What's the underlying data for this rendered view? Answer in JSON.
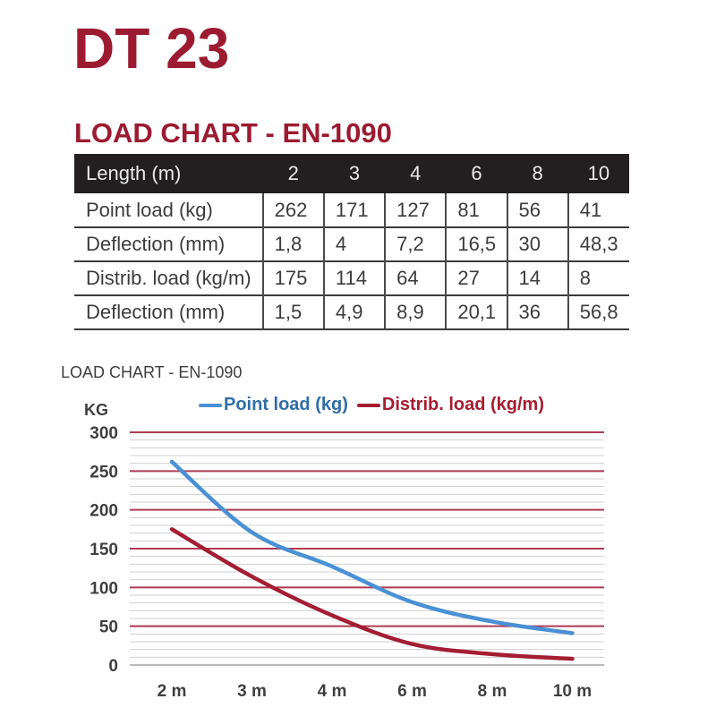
{
  "header": {
    "product_title": "DT 23",
    "section_title": "LOAD CHART - EN-1090",
    "accent_color": "#9C1B31"
  },
  "table": {
    "header_row": [
      "Length (m)",
      "2",
      "3",
      "4",
      "6",
      "8",
      "10"
    ],
    "rows": [
      [
        "Point load (kg)",
        "262",
        "171",
        "127",
        "81",
        "56",
        "41"
      ],
      [
        "Deflection (mm)",
        "1,8",
        "4",
        "7,2",
        "16,5",
        "30",
        "48,3"
      ],
      [
        "Distrib. load (kg/m)",
        "175",
        "114",
        "64",
        "27",
        "14",
        "8"
      ],
      [
        "Deflection (mm)",
        "1,5",
        "4,9",
        "8,9",
        "20,1",
        "36",
        "56,8"
      ]
    ],
    "header_bg": "#231F20",
    "header_text_color": "#E9E9E9",
    "body_text_color": "#3C3C3C"
  },
  "chart": {
    "title": "LOAD CHART - EN-1090",
    "y_axis_label": "KG",
    "legend": [
      {
        "label": "Point load (kg)",
        "text_color": "#2F6DA8",
        "line_color": "#4A90D5"
      },
      {
        "label": "Distrib. load (kg/m)",
        "text_color": "#A51D30",
        "line_color": "#A31D33"
      }
    ]
  },
  "chart_data": {
    "type": "line",
    "categories": [
      "2 m",
      "3 m",
      "4 m",
      "6 m",
      "8 m",
      "10 m"
    ],
    "series": [
      {
        "name": "Point load (kg)",
        "values": [
          262,
          171,
          127,
          81,
          56,
          41
        ],
        "color": "#4A90D5"
      },
      {
        "name": "Distrib. load (kg/m)",
        "values": [
          175,
          114,
          64,
          27,
          14,
          8
        ],
        "color": "#A31D33"
      }
    ],
    "title": "LOAD CHART - EN-1090",
    "xlabel": "",
    "ylabel": "KG",
    "ylim": [
      0,
      300
    ],
    "y_major_ticks": [
      0,
      50,
      100,
      150,
      200,
      250,
      300
    ],
    "y_minor_step": 10,
    "grid": true,
    "major_grid_color": "#AE3B52",
    "minor_grid_color": "#CFCFCF",
    "zero_line_color": "#A3A3A3",
    "tick_label_color": "#3F3F3F",
    "legend_position": "top"
  }
}
